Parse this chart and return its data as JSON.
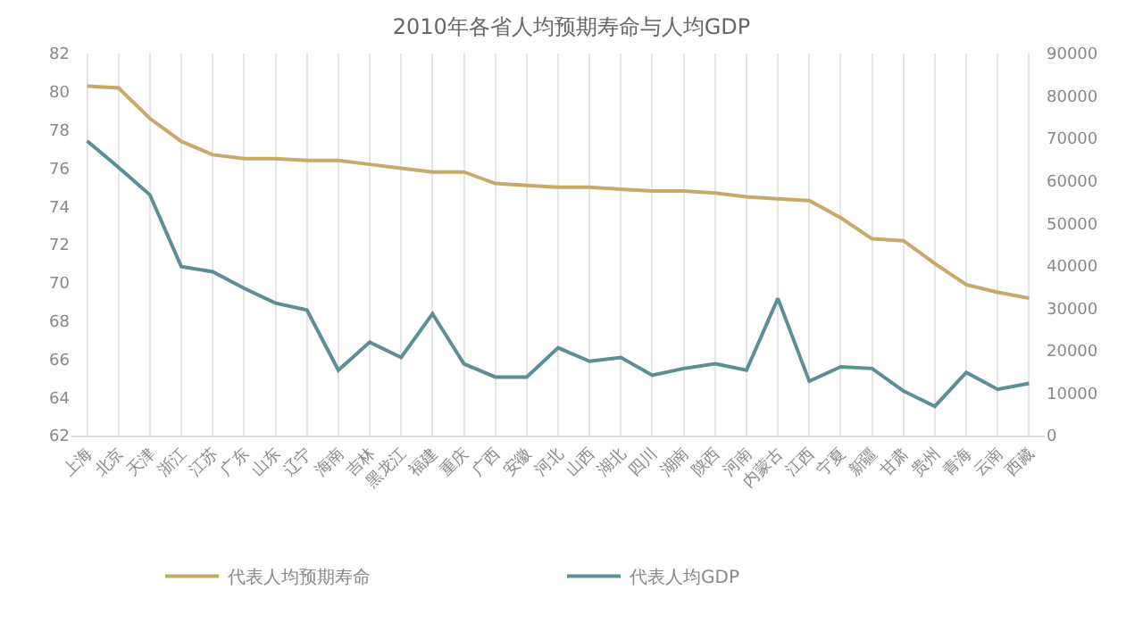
{
  "chart_data": {
    "type": "line",
    "title": "2010年各省人均预期寿命与人均GDP",
    "categories": [
      "上海",
      "北京",
      "天津",
      "浙江",
      "江苏",
      "广东",
      "山东",
      "辽宁",
      "海南",
      "吉林",
      "黑龙江",
      "福建",
      "重庆",
      "广西",
      "安徽",
      "河北",
      "山西",
      "湖北",
      "四川",
      "湖南",
      "陕西",
      "河南",
      "内蒙古",
      "江西",
      "宁夏",
      "新疆",
      "甘肃",
      "贵州",
      "青海",
      "云南",
      "西藏"
    ],
    "series": [
      {
        "name": "代表人均预期寿命",
        "color": "#c9a96a",
        "values": [
          80.3,
          80.2,
          78.6,
          77.4,
          76.7,
          76.5,
          76.5,
          76.4,
          76.4,
          76.2,
          76.0,
          75.8,
          75.8,
          75.2,
          75.1,
          75.0,
          75.0,
          74.9,
          74.8,
          74.8,
          74.7,
          74.5,
          74.4,
          74.3,
          73.4,
          72.3,
          72.2,
          71.0,
          69.9,
          69.5,
          69.2
        ]
      },
      {
        "name": "代表人均GDP",
        "color": "#5b8f95",
        "axis": "y2",
        "values": [
          69400,
          63200,
          56700,
          39800,
          38600,
          34700,
          31200,
          29600,
          15400,
          22000,
          18400,
          28700,
          16900,
          13800,
          13800,
          20700,
          17500,
          18400,
          14200,
          15800,
          16900,
          15400,
          32300,
          12800,
          16200,
          15800,
          10500,
          6900,
          14900,
          10900,
          12300
        ]
      }
    ],
    "ylim": [
      62,
      82
    ],
    "yticks": [
      62,
      64,
      66,
      68,
      70,
      72,
      74,
      76,
      78,
      80,
      82
    ],
    "y2lim": [
      0,
      90000
    ],
    "y2ticks": [
      0,
      10000,
      20000,
      30000,
      40000,
      50000,
      60000,
      70000,
      80000,
      90000
    ],
    "grid": "x",
    "legend": "bottom",
    "marker": "none",
    "line_style": "solid"
  }
}
